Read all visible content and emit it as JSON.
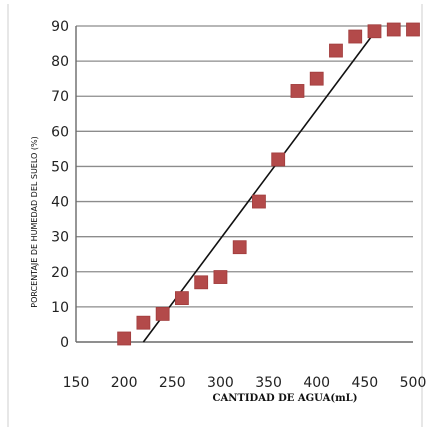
{
  "chart_data": {
    "type": "scatter",
    "title": "",
    "xlabel": "CANTIDAD DE AGUA(mL)",
    "ylabel": "PORCENTAJE DE HUMEDAD DEL SUELO (%)",
    "xlim": [
      150,
      500
    ],
    "ylim": [
      0,
      90
    ],
    "xticks": [
      150,
      200,
      250,
      300,
      350,
      400,
      450,
      500
    ],
    "yticks": [
      0,
      10,
      20,
      30,
      40,
      50,
      60,
      70,
      80,
      90
    ],
    "grid": true,
    "legend": "none",
    "colors": {
      "points": "#b34a4a",
      "trendline": "#111111",
      "grid": "#8c8c8c"
    },
    "series": [
      {
        "x": [
          200,
          220,
          240,
          260,
          280,
          300,
          320,
          340,
          360,
          380,
          400,
          420,
          440,
          460,
          480,
          500
        ],
        "y": [
          1,
          5.5,
          8,
          12.5,
          17,
          18.5,
          27,
          40,
          52,
          71.5,
          75,
          83,
          87,
          88.5,
          89,
          89
        ]
      }
    ],
    "trendline": {
      "x": [
        220,
        465
      ],
      "y": [
        0,
        90
      ]
    }
  }
}
